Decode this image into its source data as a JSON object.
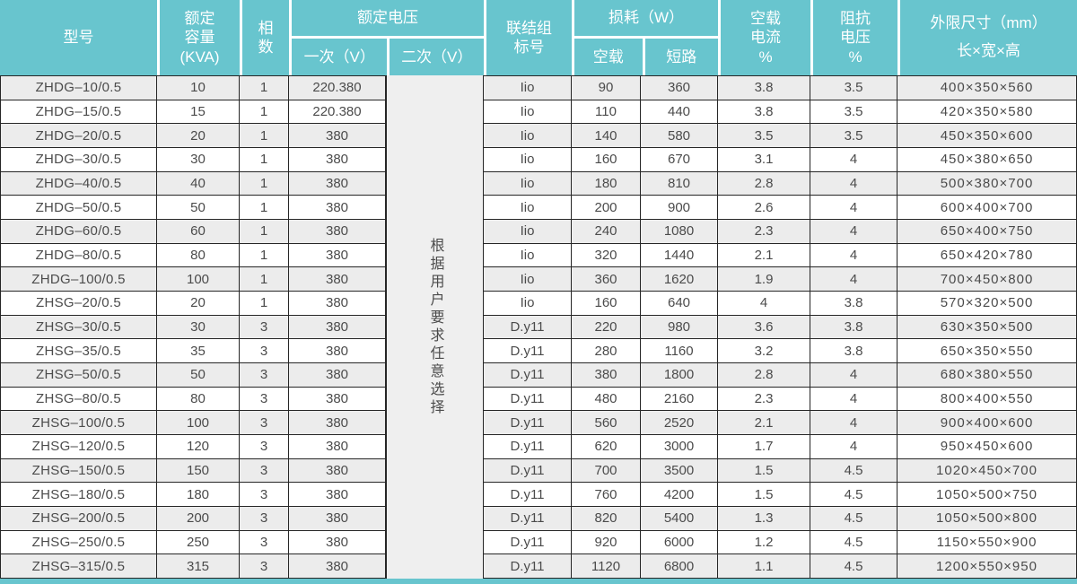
{
  "header": {
    "model": "型号",
    "capacity": "额定\n容量\n(KVA)",
    "phase": "相\n数",
    "rated_voltage": "额定电压",
    "primary": "一次（V）",
    "secondary": "二次（V）",
    "connection_group": "联结组\n标号",
    "loss": "损耗（W）",
    "no_load": "空载",
    "short_circuit": "短路",
    "no_load_current": "空载\n电流\n%",
    "impedance": "阻抗\n电压\n%",
    "dimensions": "外限尺寸（mm）\n长×宽×高"
  },
  "secondary_note": "根据用户要求任意选择",
  "rows": [
    {
      "model": "ZHDG–10/0.5",
      "capacity": "10",
      "phase": "1",
      "primary": "220.380",
      "group": "Iio",
      "no_load": "90",
      "short_circuit": "360",
      "no_load_current": "3.8",
      "impedance": "3.5",
      "dimensions": "400×350×560"
    },
    {
      "model": "ZHDG–15/0.5",
      "capacity": "15",
      "phase": "1",
      "primary": "220.380",
      "group": "Iio",
      "no_load": "110",
      "short_circuit": "440",
      "no_load_current": "3.8",
      "impedance": "3.5",
      "dimensions": "420×350×580"
    },
    {
      "model": "ZHDG–20/0.5",
      "capacity": "20",
      "phase": "1",
      "primary": "380",
      "group": "Iio",
      "no_load": "140",
      "short_circuit": "580",
      "no_load_current": "3.5",
      "impedance": "3.5",
      "dimensions": "450×350×600"
    },
    {
      "model": "ZHDG–30/0.5",
      "capacity": "30",
      "phase": "1",
      "primary": "380",
      "group": "Iio",
      "no_load": "160",
      "short_circuit": "670",
      "no_load_current": "3.1",
      "impedance": "4",
      "dimensions": "450×380×650"
    },
    {
      "model": "ZHDG–40/0.5",
      "capacity": "40",
      "phase": "1",
      "primary": "380",
      "group": "Iio",
      "no_load": "180",
      "short_circuit": "810",
      "no_load_current": "2.8",
      "impedance": "4",
      "dimensions": "500×380×700"
    },
    {
      "model": "ZHDG–50/0.5",
      "capacity": "50",
      "phase": "1",
      "primary": "380",
      "group": "Iio",
      "no_load": "200",
      "short_circuit": "900",
      "no_load_current": "2.6",
      "impedance": "4",
      "dimensions": "600×400×700"
    },
    {
      "model": "ZHDG–60/0.5",
      "capacity": "60",
      "phase": "1",
      "primary": "380",
      "group": "Iio",
      "no_load": "240",
      "short_circuit": "1080",
      "no_load_current": "2.3",
      "impedance": "4",
      "dimensions": "650×400×750"
    },
    {
      "model": "ZHDG–80/0.5",
      "capacity": "80",
      "phase": "1",
      "primary": "380",
      "group": "Iio",
      "no_load": "320",
      "short_circuit": "1440",
      "no_load_current": "2.1",
      "impedance": "4",
      "dimensions": "650×420×780"
    },
    {
      "model": "ZHDG–100/0.5",
      "capacity": "100",
      "phase": "1",
      "primary": "380",
      "group": "Iio",
      "no_load": "360",
      "short_circuit": "1620",
      "no_load_current": "1.9",
      "impedance": "4",
      "dimensions": "700×450×800"
    },
    {
      "model": "ZHSG–20/0.5",
      "capacity": "20",
      "phase": "1",
      "primary": "380",
      "group": "Iio",
      "no_load": "160",
      "short_circuit": "640",
      "no_load_current": "4",
      "impedance": "3.8",
      "dimensions": "570×320×500"
    },
    {
      "model": "ZHSG–30/0.5",
      "capacity": "30",
      "phase": "3",
      "primary": "380",
      "group": "D.y11",
      "no_load": "220",
      "short_circuit": "980",
      "no_load_current": "3.6",
      "impedance": "3.8",
      "dimensions": "630×350×500"
    },
    {
      "model": "ZHSG–35/0.5",
      "capacity": "35",
      "phase": "3",
      "primary": "380",
      "group": "D.y11",
      "no_load": "280",
      "short_circuit": "1160",
      "no_load_current": "3.2",
      "impedance": "3.8",
      "dimensions": "650×350×550"
    },
    {
      "model": "ZHSG–50/0.5",
      "capacity": "50",
      "phase": "3",
      "primary": "380",
      "group": "D.y11",
      "no_load": "380",
      "short_circuit": "1800",
      "no_load_current": "2.8",
      "impedance": "4",
      "dimensions": "680×380×550"
    },
    {
      "model": "ZHSG–80/0.5",
      "capacity": "80",
      "phase": "3",
      "primary": "380",
      "group": "D.y11",
      "no_load": "480",
      "short_circuit": "2160",
      "no_load_current": "2.3",
      "impedance": "4",
      "dimensions": "800×400×550"
    },
    {
      "model": "ZHSG–100/0.5",
      "capacity": "100",
      "phase": "3",
      "primary": "380",
      "group": "D.y11",
      "no_load": "560",
      "short_circuit": "2520",
      "no_load_current": "2.1",
      "impedance": "4",
      "dimensions": "900×400×600"
    },
    {
      "model": "ZHSG–120/0.5",
      "capacity": "120",
      "phase": "3",
      "primary": "380",
      "group": "D.y11",
      "no_load": "620",
      "short_circuit": "3000",
      "no_load_current": "1.7",
      "impedance": "4",
      "dimensions": "950×450×600"
    },
    {
      "model": "ZHSG–150/0.5",
      "capacity": "150",
      "phase": "3",
      "primary": "380",
      "group": "D.y11",
      "no_load": "700",
      "short_circuit": "3500",
      "no_load_current": "1.5",
      "impedance": "4.5",
      "dimensions": "1020×450×700"
    },
    {
      "model": "ZHSG–180/0.5",
      "capacity": "180",
      "phase": "3",
      "primary": "380",
      "group": "D.y11",
      "no_load": "760",
      "short_circuit": "4200",
      "no_load_current": "1.5",
      "impedance": "4.5",
      "dimensions": "1050×500×750"
    },
    {
      "model": "ZHSG–200/0.5",
      "capacity": "200",
      "phase": "3",
      "primary": "380",
      "group": "D.y11",
      "no_load": "820",
      "short_circuit": "5400",
      "no_load_current": "1.3",
      "impedance": "4.5",
      "dimensions": "1050×500×800"
    },
    {
      "model": "ZHSG–250/0.5",
      "capacity": "250",
      "phase": "3",
      "primary": "380",
      "group": "D.y11",
      "no_load": "920",
      "short_circuit": "6000",
      "no_load_current": "1.2",
      "impedance": "4.5",
      "dimensions": "1150×550×900"
    },
    {
      "model": "ZHSG–315/0.5",
      "capacity": "315",
      "phase": "3",
      "primary": "380",
      "group": "D.y11",
      "no_load": "1120",
      "short_circuit": "6800",
      "no_load_current": "1.1",
      "impedance": "4.5",
      "dimensions": "1200×550×950"
    }
  ],
  "colors": {
    "header_bg": "#68C5CE",
    "header_text": "#FFFFFF",
    "row_alt_bg": "#ECECEC",
    "row_bg": "#FFFFFF",
    "note_bg": "#EFEFEF",
    "border": "#262626",
    "body_text": "#4B4B4B"
  }
}
